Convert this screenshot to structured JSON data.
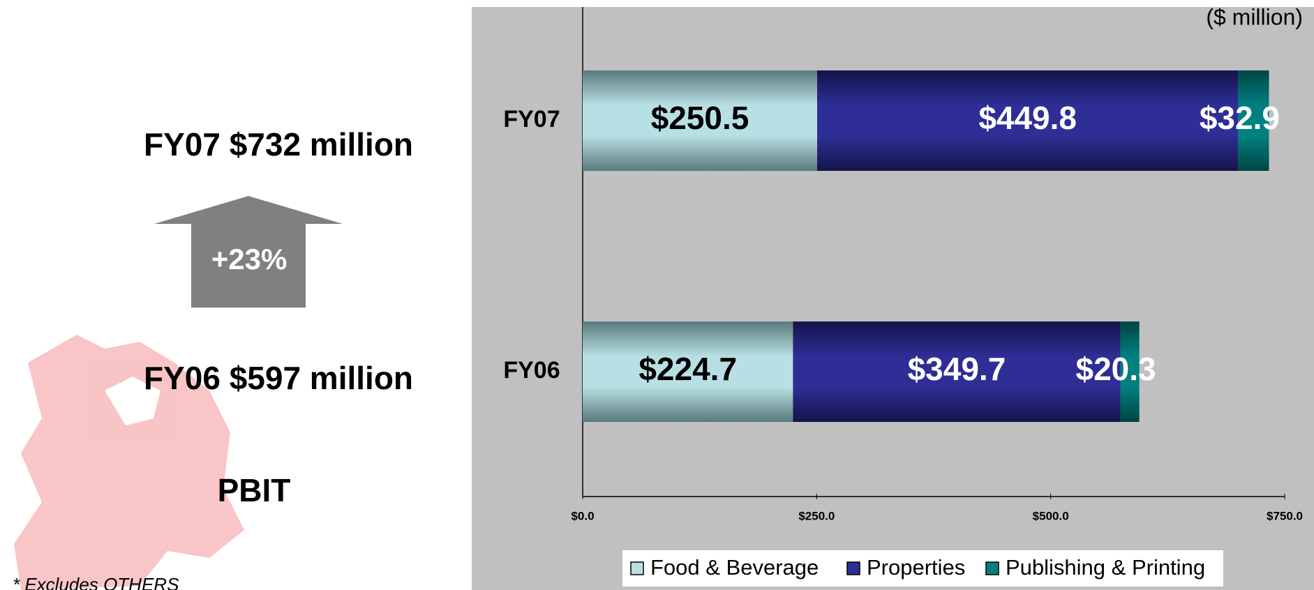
{
  "summary": {
    "fy07": "FY07 $732 million",
    "growth": "+23%",
    "fy06": "FY06 $597 million",
    "metric": "PBIT",
    "footnote": "* Excludes OTHERS"
  },
  "chart_data": {
    "type": "bar",
    "orientation": "horizontal",
    "stacked": true,
    "unit_note": "($ million)",
    "categories": [
      "FY07",
      "FY06"
    ],
    "series": [
      {
        "name": "Food & Beverage",
        "color": "#b8e0e4",
        "values": [
          250.5,
          224.7
        ],
        "value_labels": [
          "$250.5",
          "$224.7"
        ]
      },
      {
        "name": "Properties",
        "color": "#2e2e96",
        "values": [
          449.8,
          349.7
        ],
        "value_labels": [
          "$449.8",
          "$349.7"
        ]
      },
      {
        "name": "Publishing & Printing",
        "color": "#008080",
        "values": [
          32.9,
          20.3
        ],
        "value_labels": [
          "$32.9",
          "$20.3"
        ]
      }
    ],
    "xlim": [
      0,
      750
    ],
    "xticks": [
      {
        "value": 0,
        "label": "$0.0"
      },
      {
        "value": 250,
        "label": "$250.0"
      },
      {
        "value": 500,
        "label": "$500.0"
      },
      {
        "value": 750,
        "label": "$750.0"
      }
    ],
    "legend": "bottom"
  }
}
